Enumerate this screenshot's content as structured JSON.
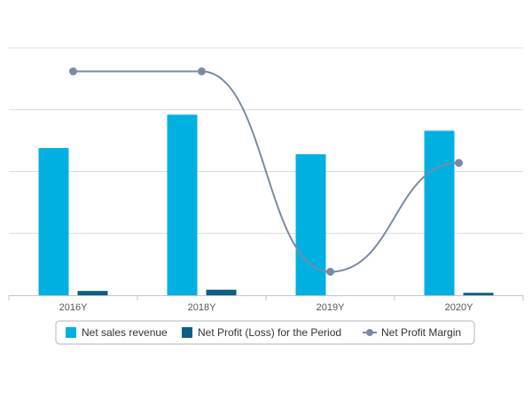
{
  "chart_data": {
    "type": "bar",
    "categories": [
      "2016Y",
      "2018Y",
      "2019Y",
      "2020Y"
    ],
    "series": [
      {
        "name": "Net sales revenue",
        "kind": "bar",
        "color": "#00b0e0",
        "values": [
          119,
          146,
          114,
          133
        ]
      },
      {
        "name": "Net Profit (Loss) for the Period",
        "kind": "bar",
        "color": "#0d5f86",
        "values": [
          3.5,
          4.5,
          0,
          2
        ]
      },
      {
        "name": "Net Profit Margin",
        "kind": "line",
        "color": "#7a8aa6",
        "values": [
          181,
          181,
          19,
          107
        ]
      }
    ],
    "title": "",
    "xlabel": "",
    "ylabel": "",
    "ylim": [
      0,
      200
    ],
    "grid": true,
    "legend": "bottom-center"
  }
}
